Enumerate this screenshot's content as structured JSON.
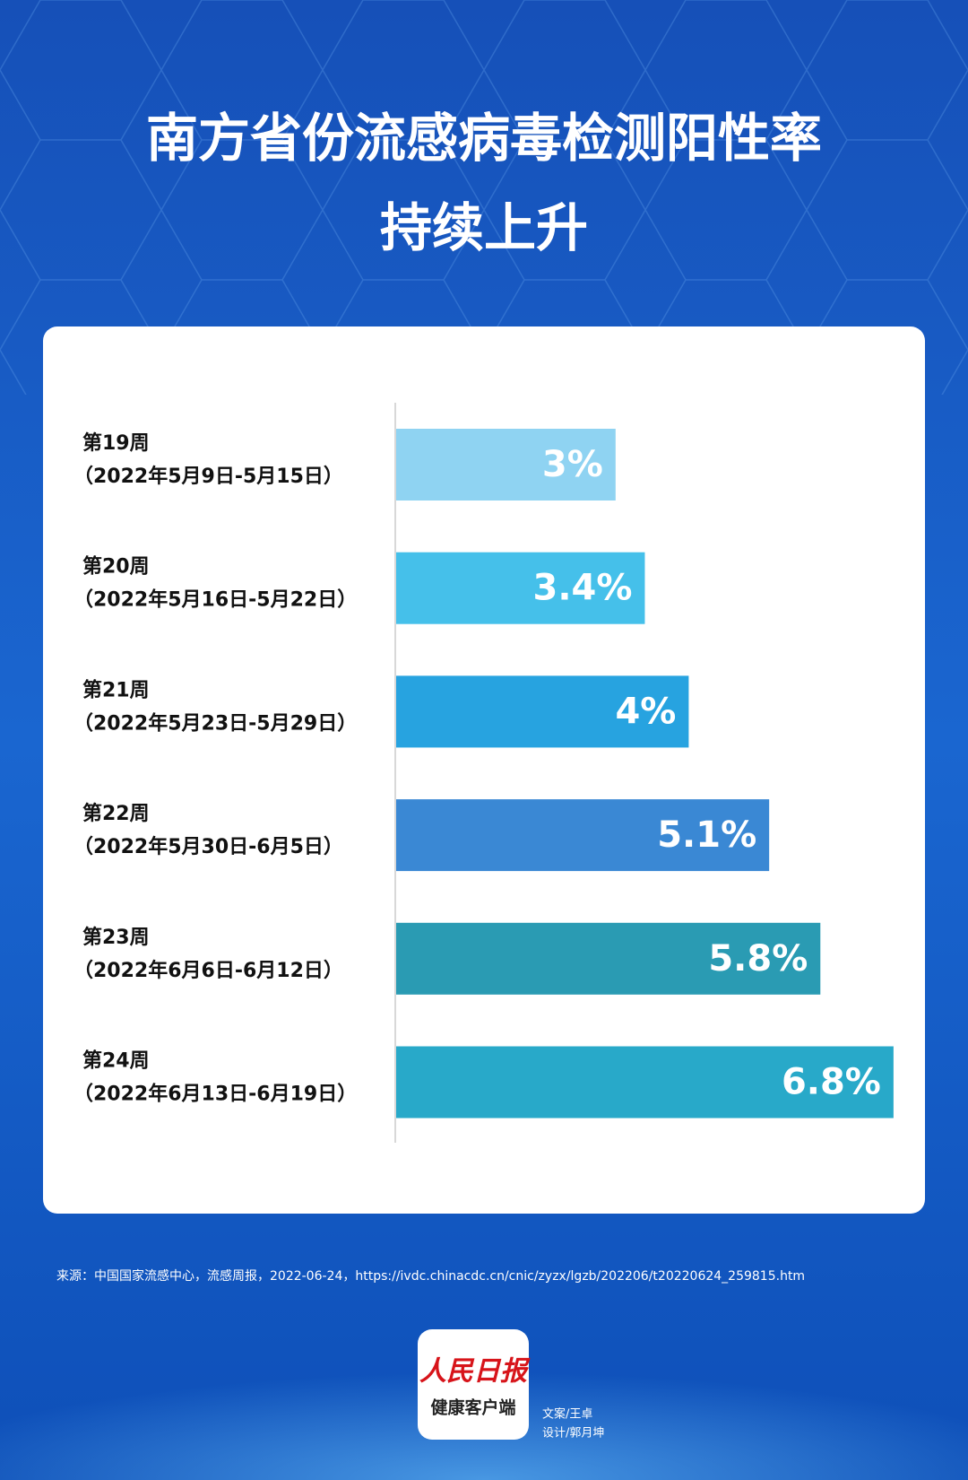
{
  "chart_data": {
    "type": "bar",
    "title": [
      "南方省份流感病毒检测阳性率",
      "持续上升"
    ],
    "categories": [
      [
        "第19周",
        "（2022年5月9日-5月15日）"
      ],
      [
        "第20周",
        "（2022年5月16日-5月22日）"
      ],
      [
        "第21周",
        "（2022年5月23日-5月29日）"
      ],
      [
        "第22周",
        "（2022年5月30日-6月5日）"
      ],
      [
        "第23周",
        "（2022年6月6日-6月12日）"
      ],
      [
        "第24周",
        "（2022年6月13日-6月19日）"
      ]
    ],
    "values": [
      3,
      3.4,
      4,
      5.1,
      5.8,
      6.8
    ],
    "value_labels": [
      "3%",
      "3.4%",
      "4%",
      "5.1%",
      "5.8%",
      "6.8%"
    ],
    "colors": [
      "#8fd3f2",
      "#45c0ea",
      "#27a3e0",
      "#3a88d4",
      "#2a9bb3",
      "#28a9c9"
    ],
    "source": "来源：中国国家流感中心，流感周报，2022-06-24，https://ivdc.chinacdc.cn/cnic/zyzx/lgzb/202206/t20220624_259815.htm",
    "logo": [
      "人民日报",
      "健康客户端"
    ],
    "credits": [
      "文案/王卓",
      "设计/郭月坤"
    ]
  }
}
